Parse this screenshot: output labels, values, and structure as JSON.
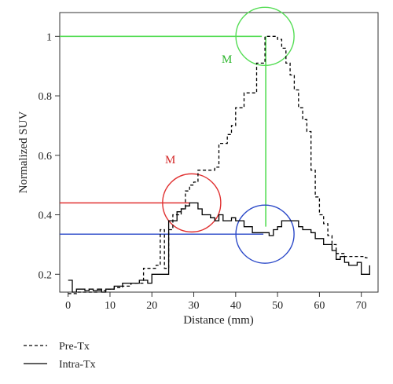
{
  "chart_data": {
    "type": "line",
    "xlabel": "Distance (mm)",
    "ylabel": "Normalized SUV",
    "xlim": [
      -2,
      74
    ],
    "ylim": [
      0.14,
      1.08
    ],
    "x_ticks": [
      0,
      10,
      20,
      30,
      40,
      50,
      60,
      70
    ],
    "y_ticks": [
      0.2,
      0.4,
      0.6,
      0.8,
      1
    ],
    "x_tick_labels": [
      "0",
      "10",
      "20",
      "30",
      "40",
      "50",
      "60",
      "70"
    ],
    "y_tick_labels": [
      "0.2",
      "0.4",
      "0.6",
      "0.8",
      "1"
    ],
    "grid": false,
    "legend_position": "bottom-left",
    "series": [
      {
        "name": "Pre-Tx",
        "style": "dashed",
        "color": "#000000",
        "x": [
          0,
          1,
          2,
          3,
          5,
          7,
          9,
          11,
          13,
          15,
          17,
          18,
          20,
          21,
          22,
          23,
          24,
          25,
          26,
          27,
          28,
          29,
          30,
          31,
          32,
          33,
          34,
          35,
          36,
          37,
          38,
          39,
          40,
          41,
          42,
          43,
          44,
          45,
          46,
          47,
          48,
          49,
          50,
          51,
          52,
          53,
          54,
          55,
          56,
          57,
          58,
          59,
          60,
          61,
          62,
          63,
          64,
          65,
          66,
          67,
          68,
          69,
          70,
          71,
          72
        ],
        "y": [
          0.135,
          0.135,
          0.14,
          0.14,
          0.14,
          0.145,
          0.15,
          0.155,
          0.16,
          0.17,
          0.17,
          0.22,
          0.22,
          0.23,
          0.35,
          0.22,
          0.35,
          0.4,
          0.4,
          0.42,
          0.48,
          0.5,
          0.51,
          0.55,
          0.55,
          0.55,
          0.55,
          0.56,
          0.64,
          0.64,
          0.67,
          0.7,
          0.76,
          0.76,
          0.81,
          0.81,
          0.81,
          0.91,
          0.91,
          1.0,
          1.0,
          1.0,
          0.99,
          0.96,
          0.91,
          0.87,
          0.82,
          0.76,
          0.72,
          0.68,
          0.55,
          0.46,
          0.4,
          0.37,
          0.33,
          0.3,
          0.27,
          0.27,
          0.26,
          0.26,
          0.26,
          0.26,
          0.26,
          0.255,
          0.255
        ]
      },
      {
        "name": "Intra-Tx",
        "style": "solid",
        "color": "#000000",
        "x": [
          0,
          1,
          2,
          3,
          4,
          5,
          6,
          7,
          8,
          9,
          10,
          11,
          12,
          13,
          14,
          15,
          16,
          17,
          18,
          19,
          20,
          21,
          22,
          23,
          24,
          25,
          26,
          27,
          28,
          29,
          30,
          31,
          32,
          33,
          34,
          35,
          36,
          37,
          38,
          39,
          40,
          41,
          42,
          43,
          44,
          45,
          46,
          47,
          48,
          49,
          50,
          51,
          52,
          53,
          54,
          55,
          56,
          57,
          58,
          59,
          60,
          61,
          62,
          63,
          64,
          65,
          66,
          67,
          68,
          69,
          70,
          71,
          72
        ],
        "y": [
          0.18,
          0.14,
          0.15,
          0.15,
          0.145,
          0.15,
          0.145,
          0.15,
          0.14,
          0.15,
          0.15,
          0.16,
          0.16,
          0.17,
          0.17,
          0.17,
          0.17,
          0.18,
          0.18,
          0.17,
          0.2,
          0.2,
          0.2,
          0.2,
          0.38,
          0.38,
          0.41,
          0.42,
          0.43,
          0.44,
          0.44,
          0.42,
          0.4,
          0.4,
          0.39,
          0.38,
          0.4,
          0.38,
          0.38,
          0.39,
          0.38,
          0.38,
          0.36,
          0.36,
          0.34,
          0.34,
          0.34,
          0.34,
          0.33,
          0.35,
          0.36,
          0.38,
          0.38,
          0.38,
          0.38,
          0.36,
          0.35,
          0.35,
          0.34,
          0.32,
          0.32,
          0.3,
          0.3,
          0.28,
          0.25,
          0.26,
          0.24,
          0.23,
          0.23,
          0.24,
          0.2,
          0.2,
          0.23
        ]
      }
    ],
    "annotations": [
      {
        "text": "M",
        "color": "#2bb52b"
      },
      {
        "text": "M",
        "color": "#d42a2a"
      }
    ],
    "overlays": {
      "pre_max": {
        "x": 47,
        "y": 1.0,
        "color": "#55dd55"
      },
      "pre_max_drop_to": 0.36,
      "intra_at_pre_max": {
        "x": 47,
        "y": 0.335,
        "color": "#2a48c8"
      },
      "intra_max": {
        "x": 29.5,
        "y": 0.44,
        "color": "#e03030"
      }
    }
  }
}
